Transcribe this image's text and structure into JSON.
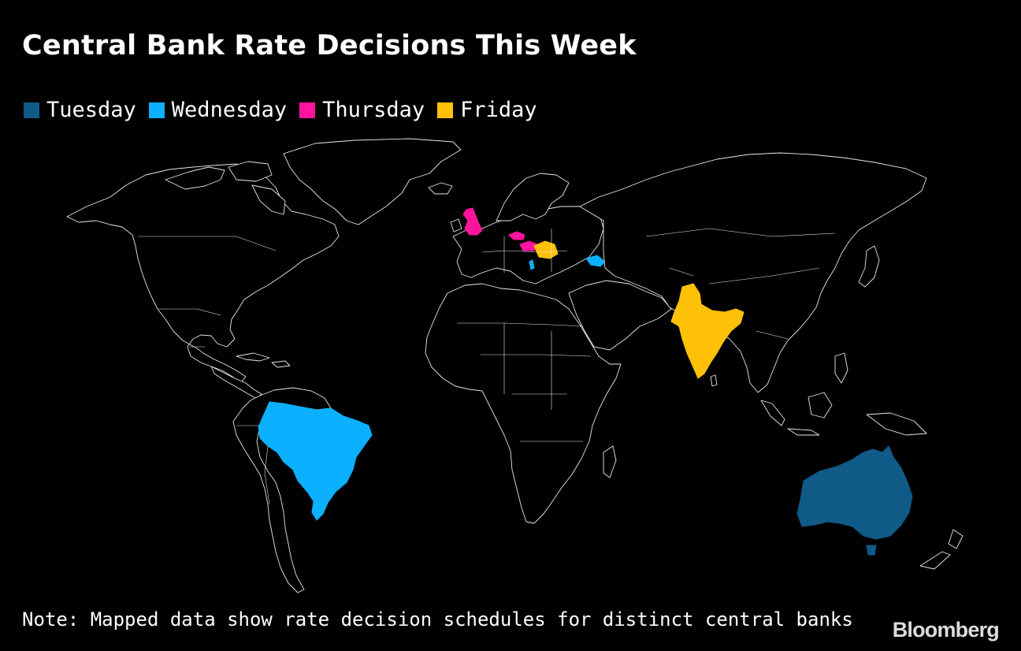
{
  "title": "Central Bank Rate Decisions This Week",
  "legend": [
    {
      "label": "Tuesday",
      "color": "#0f5a86"
    },
    {
      "label": "Wednesday",
      "color": "#0bb0ff"
    },
    {
      "label": "Thursday",
      "color": "#ff149b"
    },
    {
      "label": "Friday",
      "color": "#ffc107"
    }
  ],
  "highlighted_countries": {
    "Tuesday": [
      "Australia"
    ],
    "Wednesday": [
      "Brazil",
      "Georgia",
      "Albania"
    ],
    "Thursday": [
      "United Kingdom",
      "Czech Republic",
      "Hungary"
    ],
    "Friday": [
      "India",
      "Romania"
    ]
  },
  "note": "Note: Mapped data show rate decision schedules for distinct central banks",
  "brand": "Bloomberg"
}
